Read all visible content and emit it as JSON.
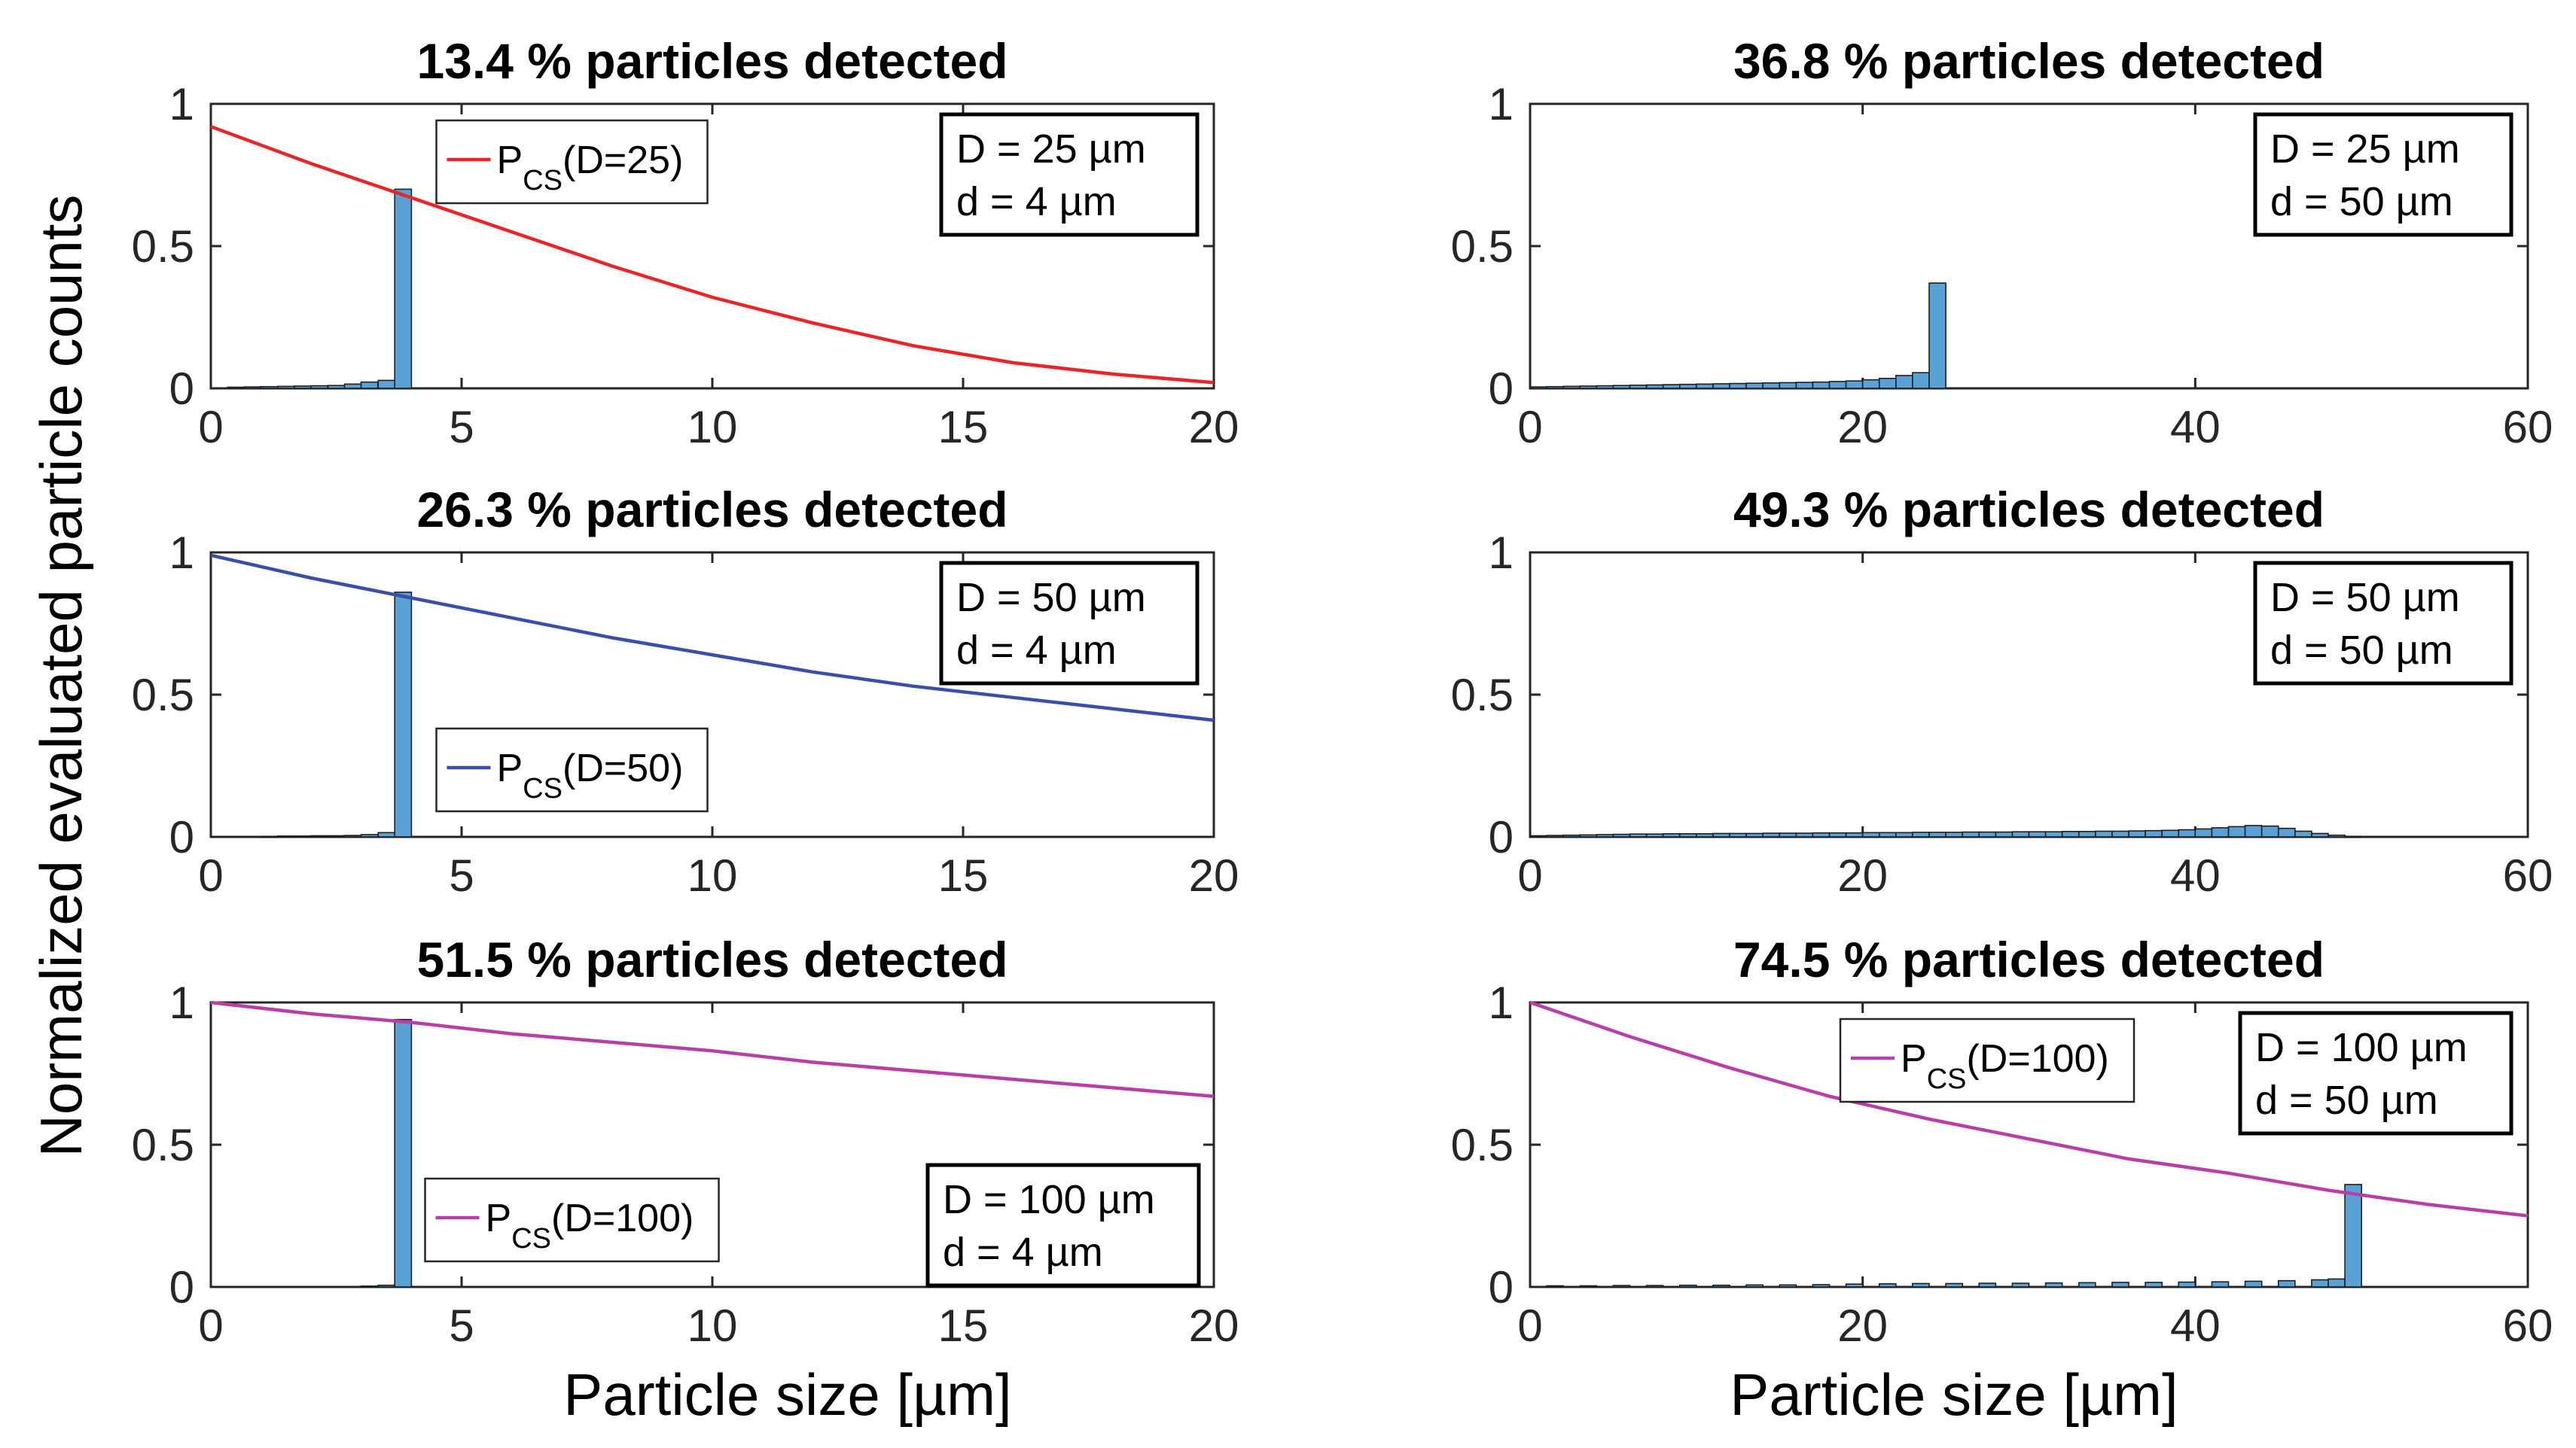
{
  "figure": {
    "ylabel": "Normalized evaluated particle counts",
    "xlabel_left": "Particle size [µm]",
    "xlabel_right": "Particle size [µm]"
  },
  "colors": {
    "bar_fill": "#5aa2d6",
    "bar_edge": "#1f1f1f",
    "red": "#e8262a",
    "blue": "#3a4fa8",
    "magenta": "#b83fa8"
  },
  "chart_data": [
    {
      "type": "bar+line",
      "position": "row1-left",
      "title": "13.4 % particles detected",
      "xlim": [
        0,
        20
      ],
      "ylim": [
        0,
        1
      ],
      "xticks": [
        0,
        5,
        10,
        15,
        20
      ],
      "yticks": [
        0,
        0.5,
        1
      ],
      "bin_width": 0.3333,
      "bars_x": [
        0.67,
        1.0,
        1.33,
        1.67,
        2.0,
        2.33,
        2.67,
        3.0,
        3.33,
        3.67,
        4.0
      ],
      "bars_y": [
        0.004,
        0.005,
        0.006,
        0.007,
        0.008,
        0.009,
        0.01,
        0.015,
        0.022,
        0.028,
        0.7
      ],
      "curve": {
        "name": "P",
        "sub": "CS",
        "param": "(D=25)",
        "color_key": "red",
        "x": [
          0,
          2,
          4,
          6,
          8,
          10,
          12,
          14,
          16,
          18,
          20
        ],
        "y": [
          0.92,
          0.79,
          0.67,
          0.55,
          0.43,
          0.32,
          0.23,
          0.15,
          0.09,
          0.05,
          0.02
        ]
      },
      "legend_loc": "top-center",
      "annotation": [
        "D = 25 µm",
        "d = 4 µm"
      ]
    },
    {
      "type": "bar",
      "position": "row1-right",
      "title": "36.8 % particles detected",
      "xlim": [
        0,
        60
      ],
      "ylim": [
        0,
        1
      ],
      "xticks": [
        0,
        20,
        40,
        60
      ],
      "yticks": [
        0,
        0.5,
        1
      ],
      "bin_width": 1.0,
      "bars_x": [
        1,
        2,
        3,
        4,
        5,
        6,
        7,
        8,
        9,
        10,
        11,
        12,
        13,
        14,
        15,
        16,
        17,
        18,
        19,
        20,
        21,
        22,
        23,
        24,
        25
      ],
      "bars_y": [
        0.005,
        0.006,
        0.007,
        0.008,
        0.009,
        0.01,
        0.011,
        0.012,
        0.013,
        0.014,
        0.015,
        0.016,
        0.017,
        0.018,
        0.019,
        0.02,
        0.021,
        0.022,
        0.024,
        0.026,
        0.03,
        0.035,
        0.045,
        0.055,
        0.37
      ],
      "annotation": [
        "D = 25 µm",
        "d = 50 µm"
      ]
    },
    {
      "type": "bar+line",
      "position": "row2-left",
      "title": "26.3 % particles detected",
      "xlim": [
        0,
        20
      ],
      "ylim": [
        0,
        1
      ],
      "xticks": [
        0,
        5,
        10,
        15,
        20
      ],
      "yticks": [
        0,
        0.5,
        1
      ],
      "bin_width": 0.3333,
      "bars_x": [
        1.33,
        1.67,
        2.0,
        2.33,
        2.67,
        3.0,
        3.33,
        3.67,
        4.0
      ],
      "bars_y": [
        0.002,
        0.003,
        0.003,
        0.004,
        0.004,
        0.005,
        0.008,
        0.015,
        0.86
      ],
      "curve": {
        "name": "P",
        "sub": "CS",
        "param": "(D=50)",
        "color_key": "blue",
        "x": [
          0,
          2,
          4,
          6,
          8,
          10,
          12,
          14,
          16,
          18,
          20
        ],
        "y": [
          0.99,
          0.91,
          0.84,
          0.77,
          0.7,
          0.64,
          0.58,
          0.53,
          0.49,
          0.45,
          0.41
        ]
      },
      "legend_loc": "bottom-center",
      "annotation": [
        "D = 50 µm",
        "d = 4 µm"
      ]
    },
    {
      "type": "bar",
      "position": "row2-right",
      "title": "49.3 % particles detected",
      "xlim": [
        0,
        60
      ],
      "ylim": [
        0,
        1
      ],
      "xticks": [
        0,
        20,
        40,
        60
      ],
      "yticks": [
        0,
        0.5,
        1
      ],
      "bin_width": 1.0,
      "bars_x": [
        1,
        2,
        3,
        4,
        5,
        6,
        7,
        8,
        9,
        10,
        11,
        12,
        13,
        14,
        15,
        16,
        17,
        18,
        19,
        20,
        21,
        22,
        23,
        24,
        25,
        26,
        27,
        28,
        29,
        30,
        31,
        32,
        33,
        34,
        35,
        36,
        37,
        38,
        39,
        40,
        41,
        42,
        43,
        44,
        45,
        46,
        47,
        48,
        49,
        50
      ],
      "bars_y": [
        0.004,
        0.005,
        0.006,
        0.007,
        0.008,
        0.009,
        0.01,
        0.01,
        0.011,
        0.011,
        0.011,
        0.012,
        0.012,
        0.012,
        0.013,
        0.013,
        0.013,
        0.014,
        0.014,
        0.014,
        0.015,
        0.015,
        0.015,
        0.016,
        0.016,
        0.016,
        0.017,
        0.017,
        0.017,
        0.018,
        0.018,
        0.018,
        0.019,
        0.019,
        0.02,
        0.02,
        0.021,
        0.022,
        0.023,
        0.025,
        0.028,
        0.032,
        0.036,
        0.04,
        0.038,
        0.03,
        0.02,
        0.012,
        0.006,
        0.002
      ],
      "annotation": [
        "D = 50 µm",
        "d = 50 µm"
      ]
    },
    {
      "type": "bar+line",
      "position": "row3-left",
      "title": "51.5 % particles detected",
      "xlim": [
        0,
        20
      ],
      "ylim": [
        0,
        1
      ],
      "xticks": [
        0,
        5,
        10,
        15,
        20
      ],
      "yticks": [
        0,
        0.5,
        1
      ],
      "bin_width": 0.3333,
      "bars_x": [
        3.33,
        3.67,
        4.0
      ],
      "bars_y": [
        0.003,
        0.006,
        0.94
      ],
      "curve": {
        "name": "P",
        "sub": "CS",
        "param": "(D=100)",
        "color_key": "magenta",
        "x": [
          0,
          2,
          4,
          6,
          8,
          10,
          12,
          14,
          16,
          18,
          20
        ],
        "y": [
          1.0,
          0.96,
          0.93,
          0.89,
          0.86,
          0.83,
          0.79,
          0.76,
          0.73,
          0.7,
          0.67
        ]
      },
      "legend_loc": "bottom-center",
      "annotation": [
        "D = 100 µm",
        "d = 4 µm"
      ]
    },
    {
      "type": "bar+line",
      "position": "row3-right",
      "title": "74.5 % particles detected",
      "xlim": [
        0,
        60
      ],
      "ylim": [
        0,
        1
      ],
      "xticks": [
        0,
        20,
        40,
        60
      ],
      "yticks": [
        0,
        0.5,
        1
      ],
      "bin_width": 1.0,
      "bars_x": [
        2,
        4,
        6,
        8,
        10,
        12,
        14,
        16,
        18,
        20,
        22,
        24,
        26,
        28,
        30,
        32,
        34,
        36,
        38,
        40,
        42,
        44,
        46,
        48,
        49,
        50
      ],
      "bars_y": [
        0.004,
        0.004,
        0.005,
        0.005,
        0.006,
        0.006,
        0.007,
        0.007,
        0.008,
        0.01,
        0.011,
        0.012,
        0.012,
        0.013,
        0.013,
        0.014,
        0.015,
        0.016,
        0.016,
        0.017,
        0.018,
        0.02,
        0.022,
        0.025,
        0.028,
        0.36
      ],
      "curve": {
        "name": "P",
        "sub": "CS",
        "param": "(D=100)",
        "color_key": "magenta",
        "x": [
          0,
          6,
          12,
          18,
          24,
          30,
          36,
          42,
          48,
          54,
          60
        ],
        "y": [
          1.0,
          0.88,
          0.77,
          0.67,
          0.59,
          0.52,
          0.45,
          0.4,
          0.34,
          0.29,
          0.25
        ]
      },
      "legend_loc": "top-center",
      "annotation": [
        "D = 100 µm",
        "d = 50 µm"
      ]
    }
  ]
}
